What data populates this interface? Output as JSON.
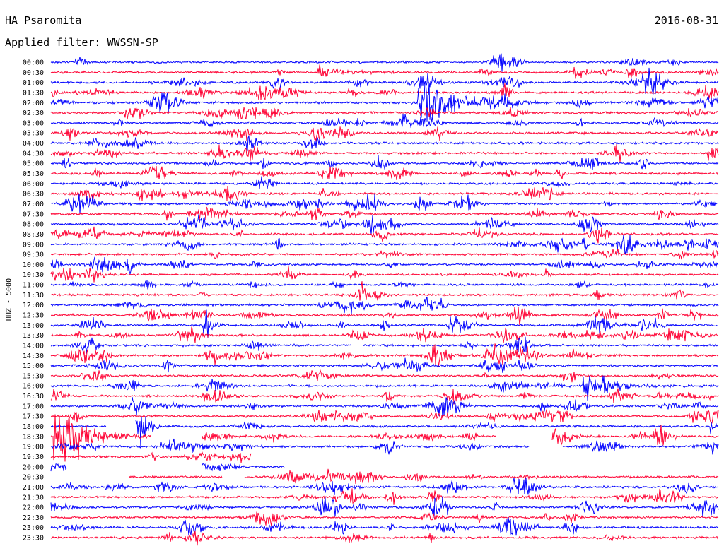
{
  "header": {
    "station": "HA Psaromita",
    "date": "2016-08-31",
    "filter": "Applied filter: WWSSN-SP"
  },
  "chart_data": {
    "type": "line",
    "ylabel": "HHZ - 5000",
    "row_labels": [
      "00:00",
      "00:30",
      "01:00",
      "01:30",
      "02:00",
      "02:30",
      "03:00",
      "03:30",
      "04:00",
      "04:30",
      "05:00",
      "05:30",
      "06:00",
      "06:30",
      "07:00",
      "07:30",
      "08:00",
      "08:30",
      "09:00",
      "09:30",
      "10:00",
      "10:30",
      "11:00",
      "11:30",
      "12:00",
      "12:30",
      "13:00",
      "13:30",
      "14:00",
      "14:30",
      "15:00",
      "15:30",
      "16:00",
      "16:30",
      "17:00",
      "17:30",
      "18:00",
      "18:30",
      "19:00",
      "19:30",
      "20:00",
      "20:30",
      "21:00",
      "21:30",
      "22:00",
      "22:30",
      "23:00",
      "23:30"
    ],
    "row_minutes": 30,
    "colors": {
      "even_rows": "#0000ff",
      "odd_rows": "#ff0033"
    },
    "events": [
      {
        "row": 1,
        "start_min": 12.0,
        "duration_min": 1.5,
        "amplitude": 8
      },
      {
        "row": 4,
        "start_min": 16.5,
        "duration_min": 2.5,
        "amplitude": 22
      },
      {
        "row": 9,
        "start_min": 29.5,
        "duration_min": 0.5,
        "amplitude": 12
      },
      {
        "row": 26,
        "start_min": 6.8,
        "duration_min": 0.6,
        "amplitude": 20
      },
      {
        "row": 32,
        "start_min": 23.9,
        "duration_min": 1.5,
        "amplitude": 18
      },
      {
        "row": 36,
        "start_min": 4.0,
        "duration_min": 0.5,
        "amplitude": 14
      },
      {
        "row": 36,
        "start_min": 29.6,
        "duration_min": 0.4,
        "amplitude": 14
      },
      {
        "row": 37,
        "start_min": 0.1,
        "duration_min": 2.2,
        "amplitude": 30
      },
      {
        "row": 38,
        "start_min": 29.7,
        "duration_min": 0.3,
        "amplitude": 10
      }
    ],
    "gaps": [
      {
        "row": 28,
        "start_min": 13.5,
        "end_min": 14.0
      },
      {
        "row": 36,
        "start_min": 2.5,
        "end_min": 3.8
      },
      {
        "row": 37,
        "start_min": 4.5,
        "end_min": 6.8
      },
      {
        "row": 37,
        "start_min": 20.0,
        "end_min": 22.5
      },
      {
        "row": 38,
        "start_min": 21.5,
        "end_min": 23.0
      },
      {
        "row": 39,
        "start_min": 9.0,
        "end_min": 30.0
      },
      {
        "row": 40,
        "start_min": 0.7,
        "end_min": 6.8
      },
      {
        "row": 40,
        "start_min": 10.5,
        "end_min": 30.0
      },
      {
        "row": 41,
        "start_min": 0.0,
        "end_min": 3.5
      },
      {
        "row": 41,
        "start_min": 7.7,
        "end_min": 8.7
      }
    ]
  }
}
